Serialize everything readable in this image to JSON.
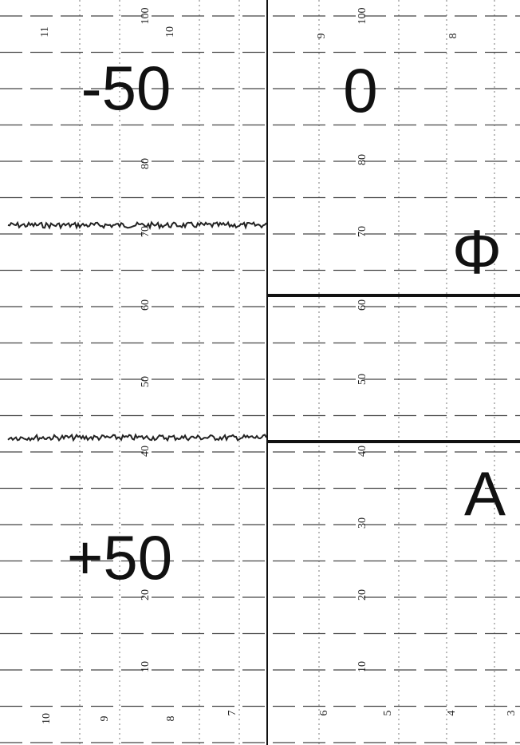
{
  "labels": {
    "minus": "-50",
    "zero": "0",
    "plus": "+50",
    "phi": "Φ",
    "a": "A"
  },
  "scale_left": [
    "100",
    "80",
    "70",
    "60",
    "50",
    "40",
    "20",
    "10"
  ],
  "scale_right": [
    "100",
    "80",
    "70",
    "60",
    "50",
    "40",
    "30",
    "20",
    "10"
  ],
  "top_numbers": [
    "11",
    "10",
    "9",
    "8"
  ],
  "bottom_numbers": [
    "10",
    "9",
    "8",
    "7",
    "6",
    "5",
    "4",
    "3"
  ]
}
